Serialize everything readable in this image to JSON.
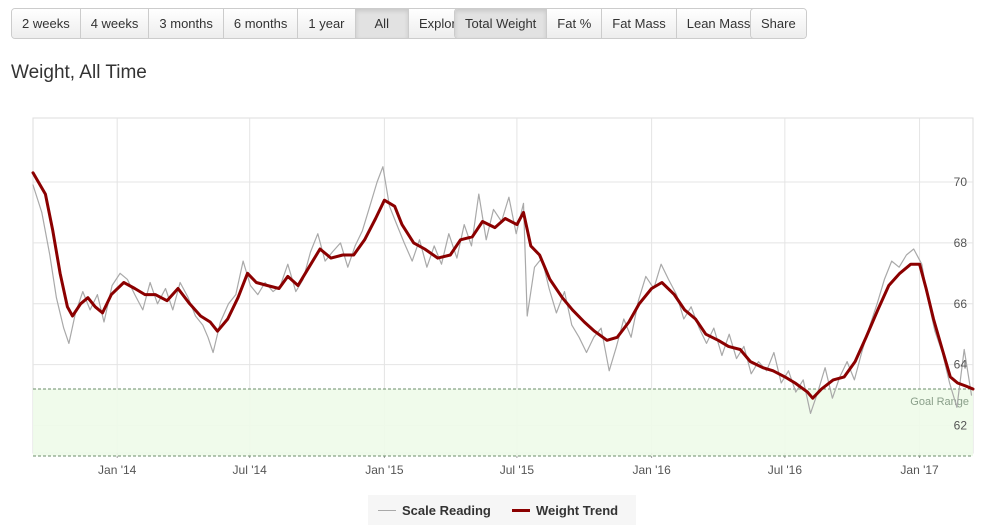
{
  "toolbar": {
    "range_buttons": [
      {
        "label": "2 weeks"
      },
      {
        "label": "4 weeks"
      },
      {
        "label": "3 months"
      },
      {
        "label": "6 months"
      },
      {
        "label": "1 year"
      },
      {
        "label": "All"
      },
      {
        "label": "Explore"
      }
    ],
    "metric_buttons": [
      {
        "label": "Total Weight"
      },
      {
        "label": "Fat %"
      },
      {
        "label": "Fat Mass"
      },
      {
        "label": "Lean Mass"
      }
    ],
    "share_label": "Share",
    "active_range": "All",
    "active_metric": "Total Weight"
  },
  "page_title": "Weight, All Time",
  "chart_data": {
    "type": "line",
    "x_ticks": [
      "Jan '14",
      "Jul '14",
      "Jan '15",
      "Jul '15",
      "Jan '16",
      "Jul '16",
      "Jan '17"
    ],
    "y_ticks": [
      62,
      64,
      66,
      68,
      70
    ],
    "y_axis_side": "right",
    "xlim": [
      "2013-09-08",
      "2017-03-15"
    ],
    "ylim": [
      61.1,
      72.1
    ],
    "grid": true,
    "goal_range": {
      "label": "Goal Range",
      "min": 61.0,
      "max": 63.2
    },
    "legend_position": "bottom-center",
    "series": [
      {
        "name": "Scale Reading",
        "color": "#a9a9a9",
        "points": [
          [
            "2013-09-08",
            69.9
          ],
          [
            "2013-09-20",
            69.0
          ],
          [
            "2013-10-01",
            67.6
          ],
          [
            "2013-10-10",
            66.2
          ],
          [
            "2013-10-20",
            65.2
          ],
          [
            "2013-10-27",
            64.7
          ],
          [
            "2013-11-05",
            65.7
          ],
          [
            "2013-11-15",
            66.4
          ],
          [
            "2013-11-25",
            65.8
          ],
          [
            "2013-12-05",
            66.3
          ],
          [
            "2013-12-14",
            65.4
          ],
          [
            "2013-12-25",
            66.6
          ],
          [
            "2014-01-05",
            67.0
          ],
          [
            "2014-01-15",
            66.8
          ],
          [
            "2014-01-25",
            66.3
          ],
          [
            "2014-02-05",
            65.8
          ],
          [
            "2014-02-15",
            66.7
          ],
          [
            "2014-02-25",
            66.0
          ],
          [
            "2014-03-08",
            66.5
          ],
          [
            "2014-03-18",
            65.8
          ],
          [
            "2014-03-28",
            66.7
          ],
          [
            "2014-04-08",
            66.2
          ],
          [
            "2014-04-18",
            65.6
          ],
          [
            "2014-04-28",
            65.3
          ],
          [
            "2014-05-05",
            64.9
          ],
          [
            "2014-05-12",
            64.4
          ],
          [
            "2014-05-22",
            65.4
          ],
          [
            "2014-06-02",
            66.0
          ],
          [
            "2014-06-12",
            66.3
          ],
          [
            "2014-06-22",
            67.4
          ],
          [
            "2014-07-02",
            66.6
          ],
          [
            "2014-07-12",
            66.3
          ],
          [
            "2014-07-22",
            66.7
          ],
          [
            "2014-08-02",
            66.4
          ],
          [
            "2014-08-12",
            66.6
          ],
          [
            "2014-08-22",
            67.3
          ],
          [
            "2014-09-02",
            66.4
          ],
          [
            "2014-09-12",
            66.8
          ],
          [
            "2014-09-22",
            67.7
          ],
          [
            "2014-10-02",
            68.3
          ],
          [
            "2014-10-12",
            67.4
          ],
          [
            "2014-10-22",
            67.7
          ],
          [
            "2014-11-02",
            68.0
          ],
          [
            "2014-11-12",
            67.2
          ],
          [
            "2014-11-22",
            67.9
          ],
          [
            "2014-12-02",
            68.4
          ],
          [
            "2014-12-12",
            69.2
          ],
          [
            "2014-12-22",
            70.0
          ],
          [
            "2014-12-30",
            70.5
          ],
          [
            "2015-01-08",
            69.2
          ],
          [
            "2015-01-18",
            68.6
          ],
          [
            "2015-01-28",
            68.0
          ],
          [
            "2015-02-08",
            67.4
          ],
          [
            "2015-02-18",
            68.1
          ],
          [
            "2015-02-28",
            67.2
          ],
          [
            "2015-03-10",
            67.9
          ],
          [
            "2015-03-20",
            67.3
          ],
          [
            "2015-03-30",
            68.3
          ],
          [
            "2015-04-10",
            67.5
          ],
          [
            "2015-04-20",
            68.6
          ],
          [
            "2015-04-30",
            67.9
          ],
          [
            "2015-05-10",
            69.6
          ],
          [
            "2015-05-20",
            68.1
          ],
          [
            "2015-05-30",
            69.1
          ],
          [
            "2015-06-10",
            68.7
          ],
          [
            "2015-06-20",
            69.5
          ],
          [
            "2015-06-30",
            68.3
          ],
          [
            "2015-07-10",
            69.3
          ],
          [
            "2015-07-15",
            65.6
          ],
          [
            "2015-07-25",
            67.2
          ],
          [
            "2015-08-04",
            67.5
          ],
          [
            "2015-08-14",
            66.5
          ],
          [
            "2015-08-24",
            65.7
          ],
          [
            "2015-09-04",
            66.4
          ],
          [
            "2015-09-14",
            65.3
          ],
          [
            "2015-09-24",
            64.9
          ],
          [
            "2015-10-04",
            64.4
          ],
          [
            "2015-10-14",
            64.9
          ],
          [
            "2015-10-24",
            65.2
          ],
          [
            "2015-11-04",
            63.8
          ],
          [
            "2015-11-14",
            64.6
          ],
          [
            "2015-11-24",
            65.5
          ],
          [
            "2015-12-04",
            64.9
          ],
          [
            "2015-12-14",
            66.1
          ],
          [
            "2015-12-24",
            66.9
          ],
          [
            "2016-01-04",
            66.5
          ],
          [
            "2016-01-14",
            67.3
          ],
          [
            "2016-01-24",
            66.8
          ],
          [
            "2016-02-04",
            66.3
          ],
          [
            "2016-02-14",
            65.5
          ],
          [
            "2016-02-24",
            65.9
          ],
          [
            "2016-03-06",
            65.2
          ],
          [
            "2016-03-16",
            64.7
          ],
          [
            "2016-03-26",
            65.2
          ],
          [
            "2016-04-06",
            64.3
          ],
          [
            "2016-04-16",
            65.0
          ],
          [
            "2016-04-26",
            64.2
          ],
          [
            "2016-05-06",
            64.6
          ],
          [
            "2016-05-16",
            63.7
          ],
          [
            "2016-05-26",
            64.1
          ],
          [
            "2016-06-06",
            63.8
          ],
          [
            "2016-06-16",
            64.4
          ],
          [
            "2016-06-26",
            63.4
          ],
          [
            "2016-07-06",
            63.8
          ],
          [
            "2016-07-16",
            63.1
          ],
          [
            "2016-07-26",
            63.5
          ],
          [
            "2016-08-05",
            62.4
          ],
          [
            "2016-08-15",
            63.1
          ],
          [
            "2016-08-25",
            63.9
          ],
          [
            "2016-09-04",
            62.9
          ],
          [
            "2016-09-14",
            63.6
          ],
          [
            "2016-09-24",
            64.1
          ],
          [
            "2016-10-04",
            63.5
          ],
          [
            "2016-10-14",
            64.4
          ],
          [
            "2016-10-24",
            65.2
          ],
          [
            "2016-11-04",
            66.0
          ],
          [
            "2016-11-14",
            66.8
          ],
          [
            "2016-11-24",
            67.4
          ],
          [
            "2016-12-04",
            67.2
          ],
          [
            "2016-12-14",
            67.6
          ],
          [
            "2016-12-24",
            67.8
          ],
          [
            "2017-01-04",
            67.3
          ],
          [
            "2017-01-12",
            66.2
          ],
          [
            "2017-01-22",
            65.1
          ],
          [
            "2017-02-01",
            64.4
          ],
          [
            "2017-02-11",
            63.4
          ],
          [
            "2017-02-21",
            62.6
          ],
          [
            "2017-03-03",
            64.5
          ],
          [
            "2017-03-13",
            63.0
          ]
        ]
      },
      {
        "name": "Weight Trend",
        "color": "#8b0000",
        "points": [
          [
            "2013-09-08",
            70.3
          ],
          [
            "2013-09-25",
            69.6
          ],
          [
            "2013-10-05",
            68.4
          ],
          [
            "2013-10-15",
            67.0
          ],
          [
            "2013-10-25",
            65.9
          ],
          [
            "2013-11-01",
            65.6
          ],
          [
            "2013-11-12",
            66.0
          ],
          [
            "2013-11-22",
            66.2
          ],
          [
            "2013-12-02",
            65.9
          ],
          [
            "2013-12-12",
            65.7
          ],
          [
            "2013-12-24",
            66.3
          ],
          [
            "2014-01-10",
            66.7
          ],
          [
            "2014-01-25",
            66.5
          ],
          [
            "2014-02-08",
            66.3
          ],
          [
            "2014-02-22",
            66.3
          ],
          [
            "2014-03-10",
            66.1
          ],
          [
            "2014-03-25",
            66.5
          ],
          [
            "2014-04-10",
            66.0
          ],
          [
            "2014-04-25",
            65.6
          ],
          [
            "2014-05-08",
            65.4
          ],
          [
            "2014-05-18",
            65.1
          ],
          [
            "2014-06-01",
            65.5
          ],
          [
            "2014-06-15",
            66.2
          ],
          [
            "2014-06-28",
            67.0
          ],
          [
            "2014-07-10",
            66.7
          ],
          [
            "2014-07-25",
            66.6
          ],
          [
            "2014-08-10",
            66.5
          ],
          [
            "2014-08-22",
            66.9
          ],
          [
            "2014-09-05",
            66.6
          ],
          [
            "2014-09-20",
            67.2
          ],
          [
            "2014-10-05",
            67.8
          ],
          [
            "2014-10-20",
            67.5
          ],
          [
            "2014-11-05",
            67.6
          ],
          [
            "2014-11-20",
            67.6
          ],
          [
            "2014-12-05",
            68.1
          ],
          [
            "2014-12-20",
            68.8
          ],
          [
            "2015-01-01",
            69.4
          ],
          [
            "2015-01-15",
            69.2
          ],
          [
            "2015-01-25",
            68.6
          ],
          [
            "2015-02-10",
            68.0
          ],
          [
            "2015-02-25",
            67.8
          ],
          [
            "2015-03-15",
            67.5
          ],
          [
            "2015-04-01",
            67.6
          ],
          [
            "2015-04-15",
            68.1
          ],
          [
            "2015-05-01",
            68.2
          ],
          [
            "2015-05-15",
            68.7
          ],
          [
            "2015-06-01",
            68.5
          ],
          [
            "2015-06-15",
            68.8
          ],
          [
            "2015-07-01",
            68.6
          ],
          [
            "2015-07-10",
            69.0
          ],
          [
            "2015-07-20",
            67.9
          ],
          [
            "2015-08-01",
            67.6
          ],
          [
            "2015-08-15",
            66.8
          ],
          [
            "2015-09-01",
            66.2
          ],
          [
            "2015-09-15",
            65.8
          ],
          [
            "2015-10-01",
            65.4
          ],
          [
            "2015-10-15",
            65.1
          ],
          [
            "2015-11-01",
            64.8
          ],
          [
            "2015-11-15",
            64.9
          ],
          [
            "2015-12-01",
            65.4
          ],
          [
            "2015-12-15",
            66.0
          ],
          [
            "2016-01-01",
            66.5
          ],
          [
            "2016-01-15",
            66.7
          ],
          [
            "2016-02-01",
            66.3
          ],
          [
            "2016-02-15",
            65.8
          ],
          [
            "2016-03-01",
            65.5
          ],
          [
            "2016-03-15",
            65.0
          ],
          [
            "2016-04-01",
            64.8
          ],
          [
            "2016-04-15",
            64.6
          ],
          [
            "2016-05-01",
            64.5
          ],
          [
            "2016-05-15",
            64.1
          ],
          [
            "2016-06-01",
            63.9
          ],
          [
            "2016-06-15",
            63.8
          ],
          [
            "2016-07-01",
            63.6
          ],
          [
            "2016-07-15",
            63.4
          ],
          [
            "2016-08-01",
            63.1
          ],
          [
            "2016-08-08",
            62.9
          ],
          [
            "2016-08-20",
            63.2
          ],
          [
            "2016-09-05",
            63.5
          ],
          [
            "2016-09-20",
            63.6
          ],
          [
            "2016-10-05",
            64.1
          ],
          [
            "2016-10-20",
            64.9
          ],
          [
            "2016-11-05",
            65.8
          ],
          [
            "2016-11-20",
            66.6
          ],
          [
            "2016-12-05",
            67.0
          ],
          [
            "2016-12-20",
            67.3
          ],
          [
            "2017-01-01",
            67.3
          ],
          [
            "2017-01-10",
            66.5
          ],
          [
            "2017-01-20",
            65.5
          ],
          [
            "2017-02-01",
            64.5
          ],
          [
            "2017-02-12",
            63.6
          ],
          [
            "2017-02-22",
            63.4
          ],
          [
            "2017-03-05",
            63.3
          ],
          [
            "2017-03-15",
            63.2
          ]
        ]
      }
    ]
  }
}
